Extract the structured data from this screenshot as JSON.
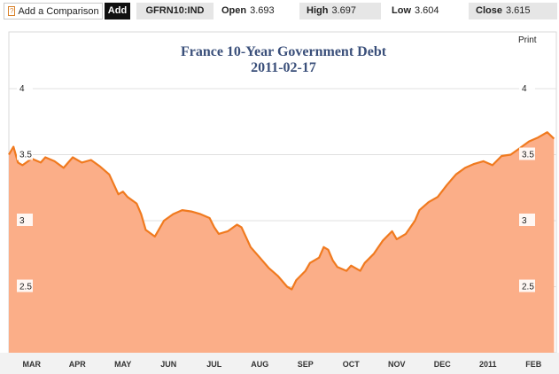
{
  "toolbar": {
    "help_glyph": "?",
    "comparison_label": "Add a Comparison",
    "add_label": "Add",
    "ticker": "GFRN10:IND",
    "open_label": "Open",
    "open_value": "3.693",
    "high_label": "High",
    "high_value": "3.697",
    "low_label": "Low",
    "low_value": "3.604",
    "close_label": "Close",
    "close_value": "3.615",
    "print_label": "Print"
  },
  "chart_data": {
    "type": "area",
    "title": "France 10-Year Government Debt",
    "subtitle": "2011-02-17",
    "ylim": [
      2.0,
      4.0
    ],
    "xlim": [
      0,
      12.0
    ],
    "y_ticks": [
      "4",
      "3.5",
      "3",
      "2.5"
    ],
    "y_tick_values": [
      4,
      3.5,
      3,
      2.5
    ],
    "x_ticks": [
      "MAR",
      "APR",
      "MAY",
      "JUN",
      "JUL",
      "AUG",
      "SEP",
      "OCT",
      "NOV",
      "DEC",
      "2011",
      "FEB"
    ],
    "x_tick_positions": [
      0.5,
      1.5,
      2.5,
      3.5,
      4.5,
      5.5,
      6.5,
      7.5,
      8.5,
      9.5,
      10.5,
      11.5
    ],
    "series": [
      {
        "color": "#f07a1f",
        "fill": "#fbae88",
        "x": [
          0,
          0.1,
          0.2,
          0.3,
          0.5,
          0.7,
          0.8,
          1.0,
          1.2,
          1.4,
          1.6,
          1.8,
          2.0,
          2.2,
          2.4,
          2.5,
          2.6,
          2.8,
          2.9,
          3.0,
          3.2,
          3.4,
          3.6,
          3.8,
          4.0,
          4.2,
          4.4,
          4.5,
          4.6,
          4.8,
          5.0,
          5.1,
          5.3,
          5.5,
          5.7,
          5.9,
          6.1,
          6.2,
          6.3,
          6.5,
          6.6,
          6.8,
          6.9,
          7.0,
          7.1,
          7.2,
          7.4,
          7.5,
          7.7,
          7.8,
          8.0,
          8.2,
          8.4,
          8.5,
          8.7,
          8.9,
          9.0,
          9.2,
          9.4,
          9.6,
          9.8,
          10.0,
          10.2,
          10.4,
          10.6,
          10.8,
          11.0,
          11.2,
          11.4,
          11.6,
          11.8,
          11.95
        ],
        "y": [
          3.5,
          3.56,
          3.44,
          3.42,
          3.47,
          3.44,
          3.48,
          3.45,
          3.4,
          3.48,
          3.44,
          3.46,
          3.41,
          3.35,
          3.2,
          3.22,
          3.18,
          3.13,
          3.05,
          2.93,
          2.88,
          3.0,
          3.05,
          3.08,
          3.07,
          3.05,
          3.02,
          2.95,
          2.9,
          2.92,
          2.97,
          2.95,
          2.8,
          2.72,
          2.64,
          2.58,
          2.5,
          2.48,
          2.55,
          2.62,
          2.68,
          2.72,
          2.8,
          2.78,
          2.7,
          2.65,
          2.62,
          2.66,
          2.62,
          2.68,
          2.75,
          2.85,
          2.92,
          2.86,
          2.9,
          3.0,
          3.08,
          3.14,
          3.18,
          3.27,
          3.35,
          3.4,
          3.43,
          3.45,
          3.42,
          3.49,
          3.5,
          3.55,
          3.6,
          3.63,
          3.67,
          3.62
        ]
      }
    ]
  }
}
